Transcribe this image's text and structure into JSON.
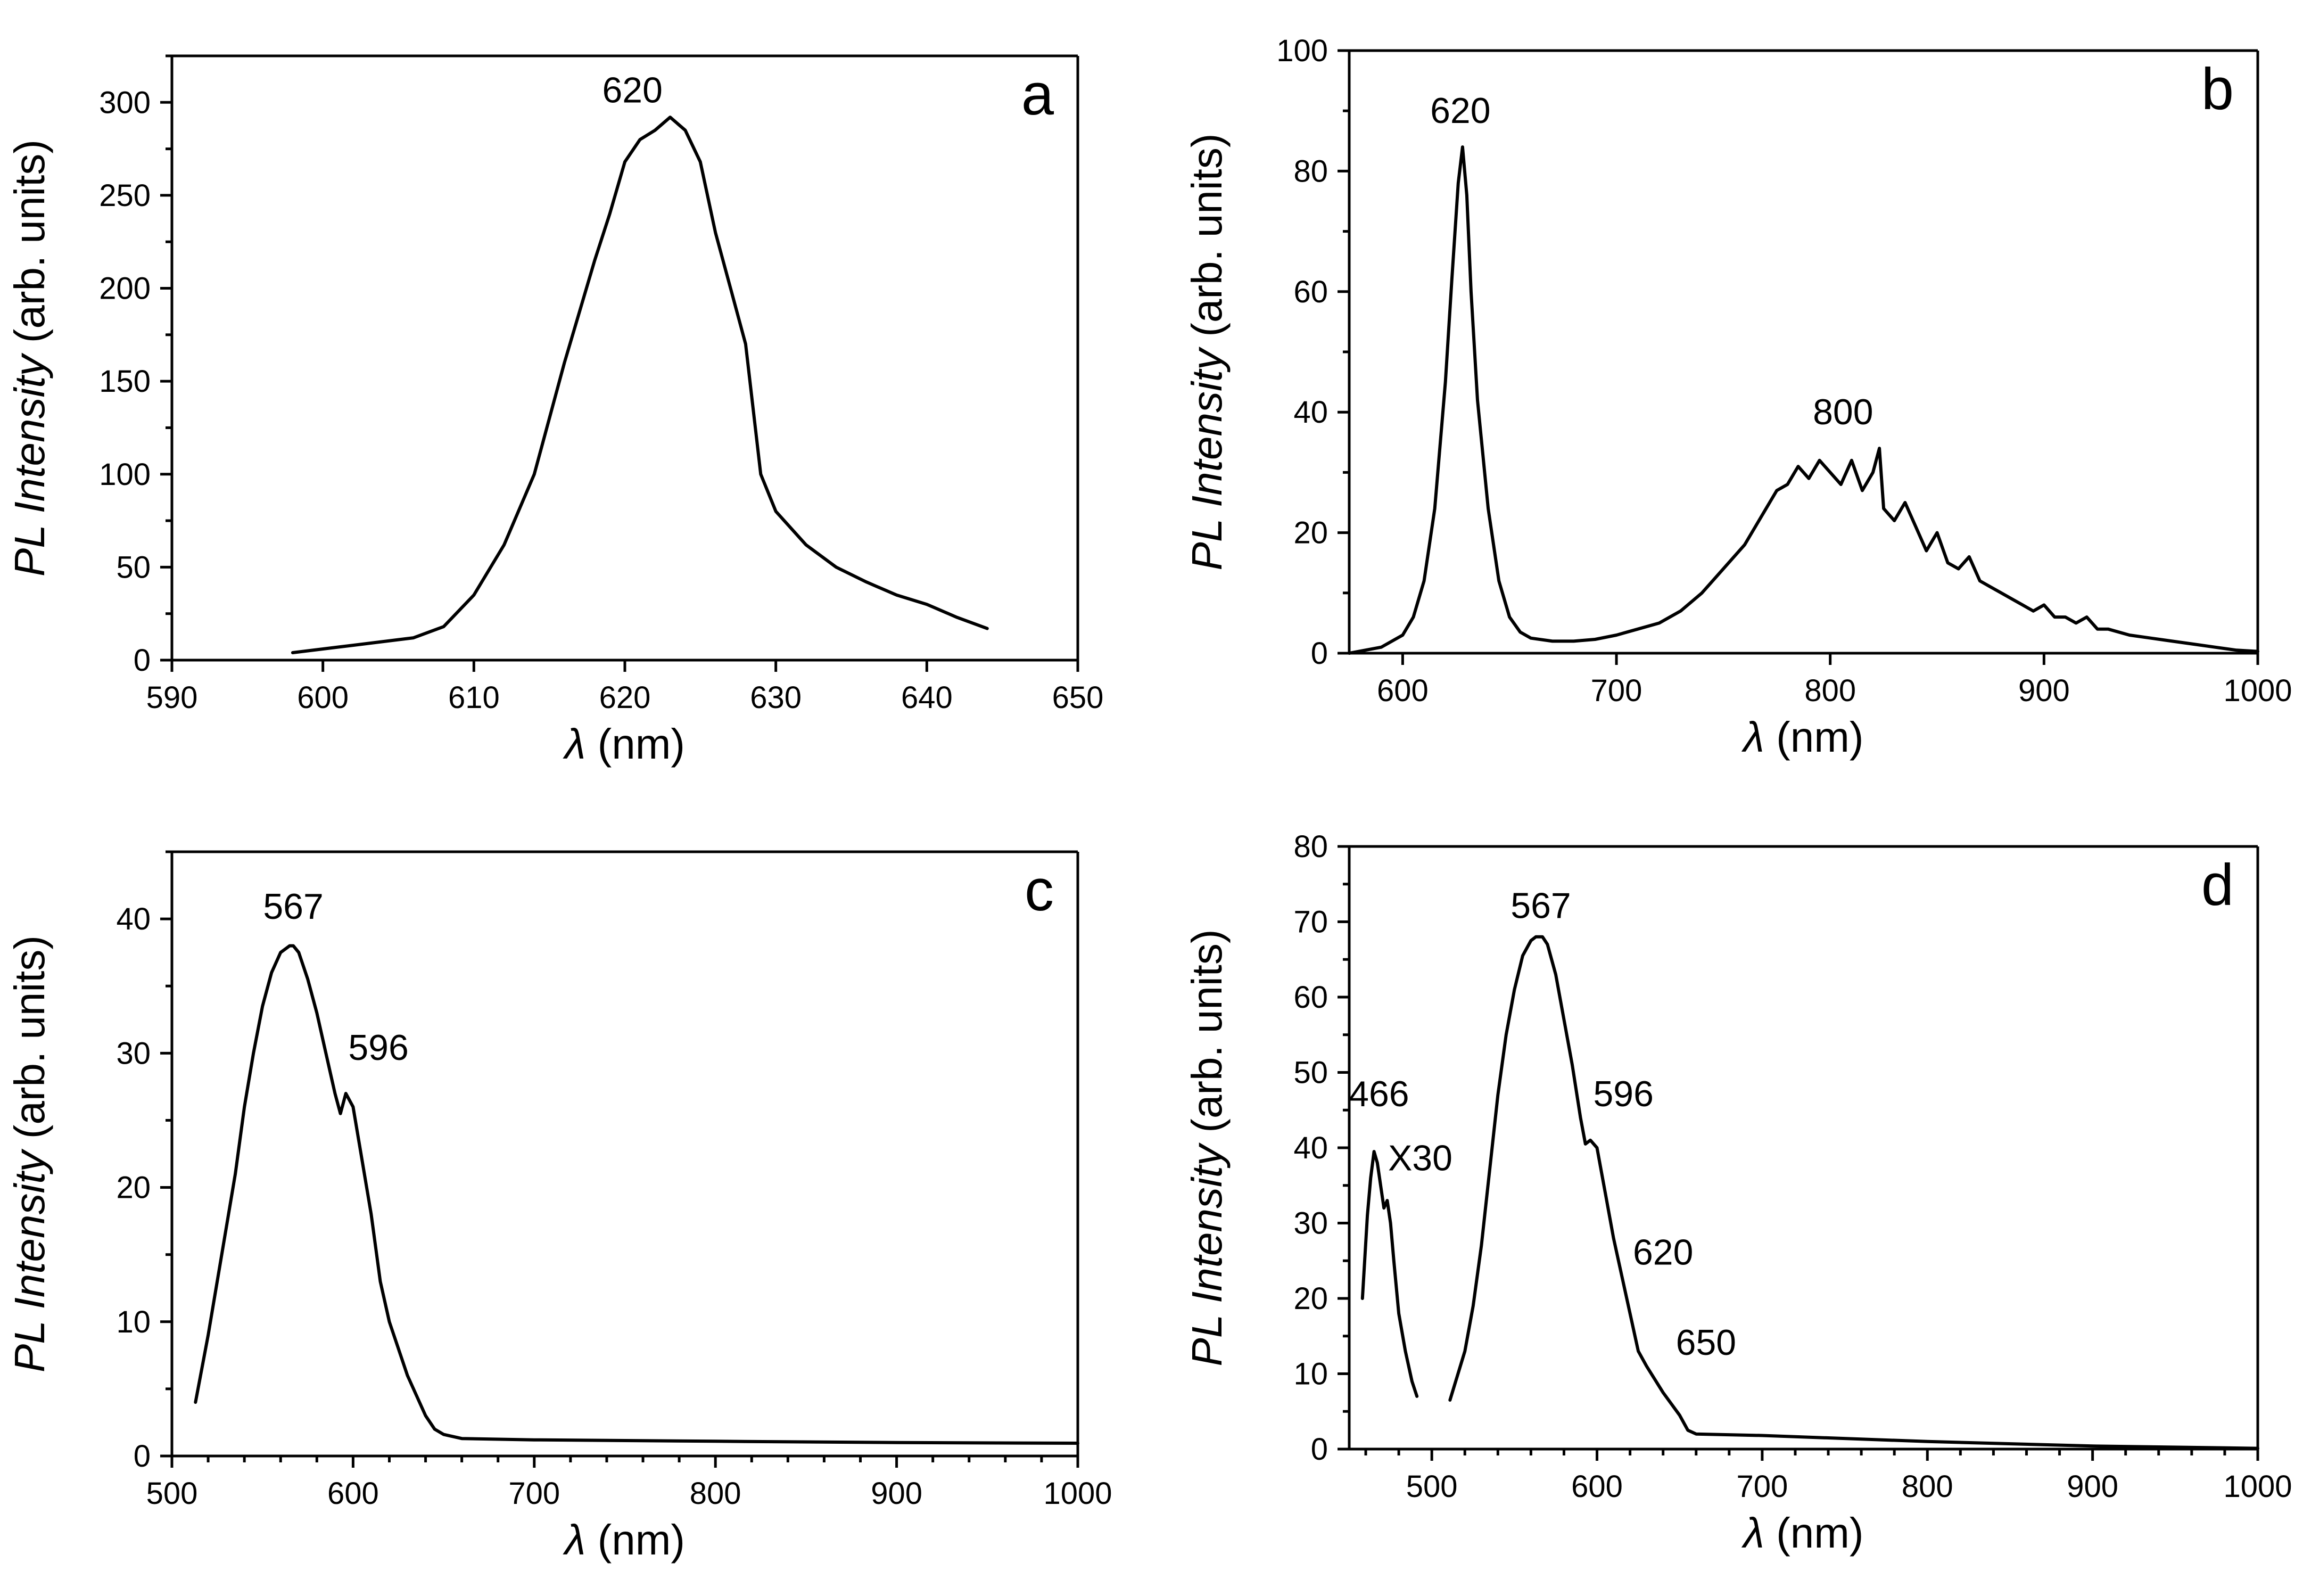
{
  "chart_data": [
    {
      "id": "a",
      "type": "line",
      "panel_label": "a",
      "xlabel_symbol": "λ",
      "xlabel_unit": "(nm)",
      "ylabel_italic": "PL Intensity",
      "ylabel_unit": "(arb. units)",
      "xlim": [
        590,
        650
      ],
      "ylim": [
        0,
        325
      ],
      "xticks": [
        590,
        600,
        610,
        620,
        630,
        640,
        650
      ],
      "yticks": [
        0,
        50,
        100,
        150,
        200,
        250,
        300
      ],
      "minor_y": 25,
      "annotations": [
        {
          "text": "620",
          "x": 620.5,
          "y": 300
        }
      ],
      "series": [
        {
          "name": "PL",
          "x": [
            598,
            602,
            606,
            608,
            610,
            612,
            614,
            616,
            618,
            619,
            620,
            621,
            622,
            623,
            624,
            625,
            626,
            627,
            628,
            629,
            630,
            632,
            634,
            636,
            638,
            640,
            642,
            644
          ],
          "y": [
            4,
            8,
            12,
            18,
            35,
            62,
            100,
            160,
            215,
            240,
            268,
            280,
            285,
            292,
            285,
            268,
            230,
            200,
            170,
            100,
            80,
            62,
            50,
            42,
            35,
            30,
            23,
            17
          ]
        }
      ]
    },
    {
      "id": "b",
      "type": "line",
      "panel_label": "b",
      "xlabel_symbol": "λ",
      "xlabel_unit": "(nm)",
      "ylabel_italic": "PL Intensity",
      "ylabel_unit": "(arb. units)",
      "xlim": [
        575,
        1000
      ],
      "ylim": [
        0,
        100
      ],
      "xticks": [
        600,
        700,
        800,
        900,
        1000
      ],
      "yticks": [
        0,
        20,
        40,
        60,
        80,
        100
      ],
      "minor_y": 10,
      "annotations": [
        {
          "text": "620",
          "x": 627,
          "y": 88
        },
        {
          "text": "800",
          "x": 806,
          "y": 38
        }
      ],
      "series": [
        {
          "name": "PL",
          "x": [
            575,
            590,
            600,
            605,
            610,
            615,
            620,
            623,
            626,
            628,
            630,
            632,
            635,
            640,
            645,
            650,
            655,
            660,
            670,
            680,
            690,
            700,
            710,
            720,
            730,
            740,
            750,
            760,
            770,
            775,
            780,
            785,
            790,
            795,
            800,
            805,
            810,
            815,
            820,
            823,
            825,
            830,
            835,
            840,
            845,
            850,
            855,
            860,
            865,
            870,
            875,
            880,
            885,
            890,
            895,
            900,
            905,
            910,
            915,
            920,
            925,
            930,
            940,
            950,
            960,
            970,
            980,
            990,
            1000
          ],
          "y": [
            0,
            1,
            3,
            6,
            12,
            24,
            45,
            62,
            78,
            84,
            76,
            60,
            42,
            24,
            12,
            6,
            3.5,
            2.5,
            2,
            2,
            2.3,
            3,
            4,
            5,
            7,
            10,
            14,
            18,
            24,
            27,
            28,
            31,
            29,
            32,
            30,
            28,
            32,
            27,
            30,
            34,
            24,
            22,
            25,
            21,
            17,
            20,
            15,
            14,
            16,
            12,
            11,
            10,
            9,
            8,
            7,
            8,
            6,
            6,
            5,
            6,
            4,
            4,
            3,
            2.5,
            2,
            1.5,
            1,
            0.5,
            0.3
          ]
        }
      ]
    },
    {
      "id": "c",
      "type": "line",
      "panel_label": "c",
      "xlabel_symbol": "λ",
      "xlabel_unit": "(nm)",
      "ylabel_italic": "PL Intensity",
      "ylabel_unit": "(arb. units)",
      "xlim": [
        500,
        1000
      ],
      "ylim": [
        0,
        45
      ],
      "xticks": [
        500,
        600,
        700,
        800,
        900,
        1000
      ],
      "yticks": [
        0,
        10,
        20,
        30,
        40
      ],
      "minor_y": 5,
      "minor_x": 20,
      "annotations": [
        {
          "text": "567",
          "x": 567,
          "y": 40
        },
        {
          "text": "596",
          "x": 614,
          "y": 29.5
        }
      ],
      "series": [
        {
          "name": "PL",
          "x": [
            513,
            520,
            525,
            530,
            535,
            540,
            545,
            550,
            555,
            560,
            565,
            567,
            570,
            575,
            580,
            585,
            590,
            593,
            596,
            600,
            605,
            610,
            615,
            620,
            625,
            630,
            640,
            645,
            650,
            660,
            700,
            800,
            900,
            1000
          ],
          "y": [
            4,
            9,
            13,
            17,
            21,
            26,
            30,
            33.5,
            36,
            37.5,
            38,
            38,
            37.5,
            35.5,
            33,
            30,
            27,
            25.5,
            27,
            26,
            22,
            18,
            13,
            10,
            8,
            6,
            3,
            2,
            1.6,
            1.3,
            1.2,
            1.1,
            1.0,
            0.95
          ]
        }
      ]
    },
    {
      "id": "d",
      "type": "line",
      "panel_label": "d",
      "xlabel_symbol": "λ",
      "xlabel_unit": "(nm)",
      "ylabel_italic": "PL Intensity",
      "ylabel_unit": "(arb. units)",
      "xlim": [
        450,
        1000
      ],
      "ylim": [
        0,
        80
      ],
      "xticks": [
        500,
        600,
        700,
        800,
        900,
        1000
      ],
      "yticks": [
        0,
        10,
        20,
        30,
        40,
        50,
        60,
        70,
        80
      ],
      "minor_y": 5,
      "minor_x": 20,
      "annotations": [
        {
          "text": "567",
          "x": 566,
          "y": 70.5
        },
        {
          "text": "596",
          "x": 616,
          "y": 45.5
        },
        {
          "text": "620",
          "x": 640,
          "y": 24.5
        },
        {
          "text": "650",
          "x": 666,
          "y": 12.5
        },
        {
          "text": "466",
          "x": 468,
          "y": 45.5
        },
        {
          "text": "X30",
          "x": 493,
          "y": 37
        }
      ],
      "series": [
        {
          "name": "466 band (X30)",
          "x": [
            458,
            461,
            463,
            465,
            467,
            469,
            471,
            473,
            475,
            477,
            480,
            484,
            488,
            491
          ],
          "y": [
            20,
            31,
            36,
            39.5,
            38,
            35,
            32,
            33,
            30,
            25,
            18,
            13,
            9,
            7
          ]
        },
        {
          "name": "PL",
          "x": [
            511,
            520,
            525,
            530,
            535,
            540,
            545,
            550,
            555,
            560,
            563,
            567,
            570,
            575,
            580,
            585,
            590,
            593,
            596,
            600,
            605,
            610,
            615,
            620,
            625,
            630,
            640,
            650,
            655,
            660,
            700,
            800,
            900,
            1000
          ],
          "y": [
            6.5,
            13,
            19,
            27,
            37,
            47,
            55,
            61,
            65.5,
            67.5,
            68,
            68,
            67,
            63,
            57,
            51,
            44,
            40.5,
            41,
            40,
            34,
            28,
            23,
            18,
            13,
            11,
            7.5,
            4.5,
            2.5,
            2,
            1.8,
            1,
            0.4,
            0.1
          ]
        }
      ]
    }
  ]
}
